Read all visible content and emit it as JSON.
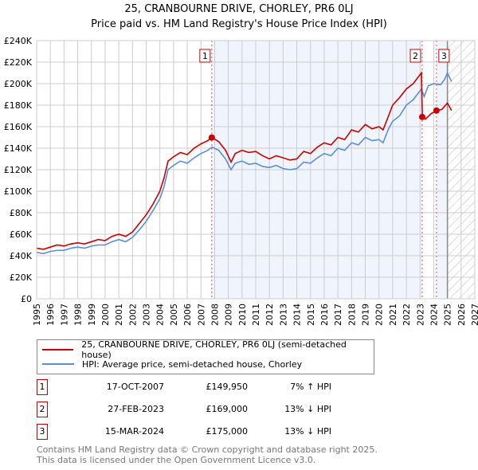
{
  "chart_data": {
    "type": "line",
    "title": "25, CRANBOURNE DRIVE, CHORLEY, PR6 0LJ",
    "subtitle": "Price paid vs. HM Land Registry's House Price Index (HPI)",
    "xlim": [
      1995,
      2027
    ],
    "ylim": [
      0,
      240000
    ],
    "x_ticks": [
      "1995",
      "1996",
      "1997",
      "1998",
      "1999",
      "2000",
      "2001",
      "2002",
      "2003",
      "2004",
      "2005",
      "2006",
      "2007",
      "2008",
      "2009",
      "2010",
      "2011",
      "2012",
      "2013",
      "2014",
      "2015",
      "2016",
      "2017",
      "2018",
      "2019",
      "2020",
      "2021",
      "2022",
      "2023",
      "2024",
      "2025",
      "2026",
      "2027"
    ],
    "y_ticks": [
      {
        "v": 0,
        "label": "£0"
      },
      {
        "v": 20000,
        "label": "£20K"
      },
      {
        "v": 40000,
        "label": "£40K"
      },
      {
        "v": 60000,
        "label": "£60K"
      },
      {
        "v": 80000,
        "label": "£80K"
      },
      {
        "v": 100000,
        "label": "£100K"
      },
      {
        "v": 120000,
        "label": "£120K"
      },
      {
        "v": 140000,
        "label": "£140K"
      },
      {
        "v": 160000,
        "label": "£160K"
      },
      {
        "v": 180000,
        "label": "£180K"
      },
      {
        "v": 200000,
        "label": "£200K"
      },
      {
        "v": 220000,
        "label": "£220K"
      },
      {
        "v": 240000,
        "label": "£240K"
      }
    ],
    "grid": true,
    "forecast_start": 2025.0,
    "series": [
      {
        "name": "25, CRANBOURNE DRIVE, CHORLEY, PR6 0LJ (semi-detached house)",
        "color": "#cc0000",
        "x": [
          1995,
          1995.5,
          1996,
          1996.5,
          1997,
          1997.5,
          1998,
          1998.5,
          1999,
          1999.5,
          2000,
          2000.5,
          2001,
          2001.5,
          2002,
          2002.5,
          2003,
          2003.5,
          2004,
          2004.3,
          2004.6,
          2005,
          2005.5,
          2006,
          2006.5,
          2007,
          2007.5,
          2007.8,
          2008.3,
          2008.8,
          2009.2,
          2009.5,
          2010,
          2010.5,
          2011,
          2011.5,
          2012,
          2012.5,
          2013,
          2013.5,
          2014,
          2014.5,
          2015,
          2015.5,
          2016,
          2016.5,
          2017,
          2017.5,
          2018,
          2018.5,
          2019,
          2019.5,
          2020,
          2020.3,
          2020.7,
          2021,
          2021.5,
          2022,
          2022.5,
          2023.1,
          2023.17,
          2023.4,
          2023.8,
          2024.2,
          2024.6,
          2025.0,
          2025.3
        ],
        "y": [
          47000,
          46000,
          48000,
          50000,
          49000,
          51000,
          52000,
          51000,
          53000,
          55000,
          54000,
          58000,
          60000,
          58000,
          62000,
          70000,
          78000,
          88000,
          100000,
          112000,
          128000,
          132000,
          136000,
          134000,
          140000,
          144000,
          147000,
          150000,
          146000,
          138000,
          127000,
          135000,
          138000,
          136000,
          137000,
          133000,
          130000,
          133000,
          131000,
          129000,
          130000,
          137000,
          135000,
          141000,
          145000,
          143000,
          150000,
          148000,
          157000,
          155000,
          162000,
          158000,
          160000,
          157000,
          170000,
          180000,
          187000,
          195000,
          200000,
          210000,
          169000,
          167000,
          172000,
          175000,
          176000,
          182000,
          175000
        ]
      },
      {
        "name": "HPI: Average price, semi-detached house, Chorley",
        "color": "#5b8ed6",
        "x": [
          1995,
          1995.5,
          1996,
          1996.5,
          1997,
          1997.5,
          1998,
          1998.5,
          1999,
          1999.5,
          2000,
          2000.5,
          2001,
          2001.5,
          2002,
          2002.5,
          2003,
          2003.5,
          2004,
          2004.3,
          2004.6,
          2005,
          2005.5,
          2006,
          2006.5,
          2007,
          2007.5,
          2007.8,
          2008.3,
          2008.8,
          2009.2,
          2009.5,
          2010,
          2010.5,
          2011,
          2011.5,
          2012,
          2012.5,
          2013,
          2013.5,
          2014,
          2014.5,
          2015,
          2015.5,
          2016,
          2016.5,
          2017,
          2017.5,
          2018,
          2018.5,
          2019,
          2019.5,
          2020,
          2020.3,
          2020.7,
          2021,
          2021.5,
          2022,
          2022.5,
          2023.1,
          2023.3,
          2023.6,
          2024,
          2024.5,
          2024.8,
          2025.0,
          2025.3
        ],
        "y": [
          43000,
          42000,
          44000,
          45000,
          45000,
          47000,
          48000,
          47000,
          49000,
          50000,
          50000,
          53000,
          55000,
          53000,
          57000,
          64000,
          72000,
          82000,
          93000,
          104000,
          120000,
          124000,
          128000,
          126000,
          131000,
          135000,
          138000,
          141000,
          138000,
          130000,
          120000,
          126000,
          128000,
          125000,
          126000,
          123000,
          122000,
          124000,
          121000,
          120000,
          121000,
          127000,
          126000,
          131000,
          135000,
          133000,
          140000,
          138000,
          145000,
          143000,
          150000,
          147000,
          148000,
          145000,
          158000,
          165000,
          170000,
          180000,
          185000,
          195000,
          188000,
          198000,
          200000,
          199000,
          204000,
          210000,
          202000
        ]
      }
    ],
    "sales": [
      {
        "label": "1",
        "x": 2007.79,
        "y": 149950
      },
      {
        "label": "2",
        "x": 2023.16,
        "y": 169000
      },
      {
        "label": "3",
        "x": 2024.2,
        "y": 175000
      }
    ]
  },
  "legend": {
    "property": "25, CRANBOURNE DRIVE, CHORLEY, PR6 0LJ (semi-detached house)",
    "hpi": "HPI: Average price, semi-detached house, Chorley"
  },
  "transactions": [
    {
      "num": "1",
      "date": "17-OCT-2007",
      "price": "£149,950",
      "hpi": "7% ↑ HPI"
    },
    {
      "num": "2",
      "date": "27-FEB-2023",
      "price": "£169,000",
      "hpi": "13% ↓ HPI"
    },
    {
      "num": "3",
      "date": "15-MAR-2024",
      "price": "£175,000",
      "hpi": "13% ↓ HPI"
    }
  ],
  "footer": {
    "line1": "Contains HM Land Registry data © Crown copyright and database right 2025.",
    "line2": "This data is licensed under the Open Government Licence v3.0."
  }
}
